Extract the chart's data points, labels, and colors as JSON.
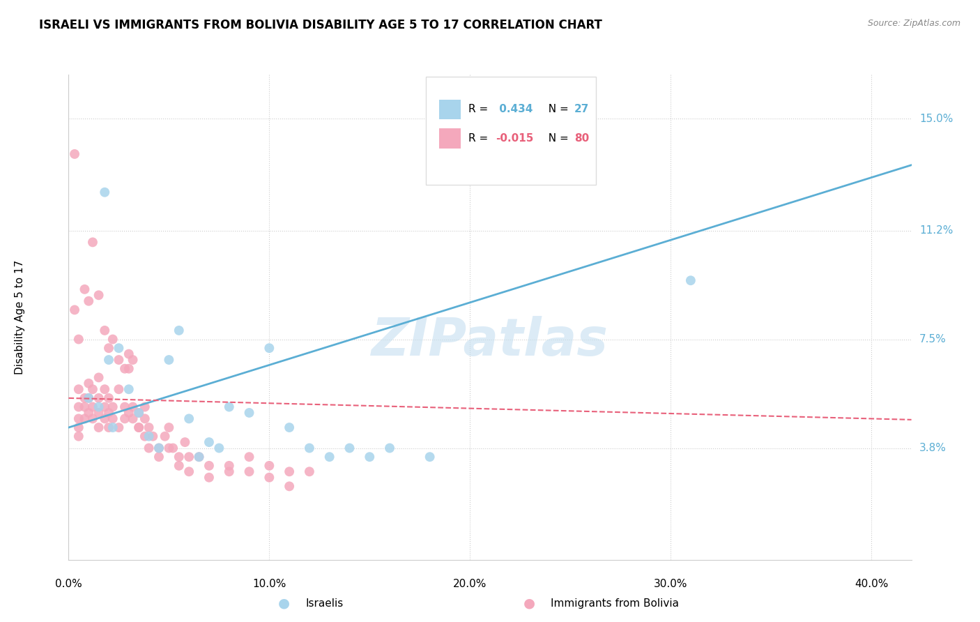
{
  "title": "ISRAELI VS IMMIGRANTS FROM BOLIVIA DISABILITY AGE 5 TO 17 CORRELATION CHART",
  "source": "Source: ZipAtlas.com",
  "xlabel_ticks": [
    "0.0%",
    "10.0%",
    "20.0%",
    "30.0%",
    "40.0%"
  ],
  "xlabel_vals": [
    0.0,
    10.0,
    20.0,
    30.0,
    40.0
  ],
  "ylabel": "Disability Age 5 to 17",
  "right_ytick_labels": [
    "3.8%",
    "7.5%",
    "11.2%",
    "15.0%"
  ],
  "right_ytick_vals": [
    3.8,
    7.5,
    11.2,
    15.0
  ],
  "ylim": [
    0.0,
    16.5
  ],
  "xlim": [
    0.0,
    42.0
  ],
  "blue_R": 0.434,
  "blue_N": 27,
  "pink_R": -0.015,
  "pink_N": 80,
  "blue_color": "#a8d4ec",
  "pink_color": "#f4a8bc",
  "blue_line_color": "#5baed4",
  "pink_line_color": "#e8607a",
  "legend_label1": "Israelis",
  "legend_label2": "Immigrants from Bolivia",
  "watermark": "ZIPatlas",
  "watermark_color": "#c5dff0",
  "blue_x": [
    1.0,
    1.5,
    2.0,
    2.2,
    2.5,
    3.0,
    3.5,
    4.0,
    4.5,
    5.0,
    5.5,
    6.0,
    6.5,
    7.0,
    7.5,
    8.0,
    9.0,
    10.0,
    11.0,
    12.0,
    13.0,
    14.0,
    15.0,
    16.0,
    18.0,
    31.0,
    1.8
  ],
  "blue_y": [
    5.5,
    5.2,
    6.8,
    4.5,
    7.2,
    5.8,
    5.0,
    4.2,
    3.8,
    6.8,
    7.8,
    4.8,
    3.5,
    4.0,
    3.8,
    5.2,
    5.0,
    7.2,
    4.5,
    3.8,
    3.5,
    3.8,
    3.5,
    3.8,
    3.5,
    9.5,
    12.5
  ],
  "pink_x": [
    0.5,
    0.5,
    0.5,
    0.5,
    0.5,
    0.8,
    0.8,
    0.8,
    1.0,
    1.0,
    1.0,
    1.2,
    1.2,
    1.2,
    1.5,
    1.5,
    1.5,
    1.5,
    1.8,
    1.8,
    1.8,
    2.0,
    2.0,
    2.0,
    2.2,
    2.2,
    2.5,
    2.5,
    2.8,
    2.8,
    3.0,
    3.0,
    3.2,
    3.2,
    3.5,
    3.5,
    3.8,
    3.8,
    4.0,
    4.2,
    4.5,
    4.8,
    5.0,
    5.2,
    5.5,
    5.8,
    6.0,
    6.5,
    7.0,
    8.0,
    9.0,
    10.0,
    11.0,
    12.0,
    0.3,
    0.3,
    0.5,
    0.8,
    1.0,
    1.2,
    1.5,
    1.8,
    2.0,
    2.2,
    2.5,
    2.8,
    3.0,
    3.2,
    3.5,
    3.8,
    4.0,
    4.5,
    5.0,
    5.5,
    6.0,
    7.0,
    8.0,
    9.0,
    10.0,
    11.0
  ],
  "pink_y": [
    5.2,
    4.8,
    4.5,
    4.2,
    5.8,
    5.5,
    4.8,
    5.2,
    6.0,
    5.5,
    5.0,
    5.2,
    5.8,
    4.8,
    6.2,
    5.5,
    5.0,
    4.5,
    5.8,
    5.2,
    4.8,
    5.5,
    5.0,
    4.5,
    5.2,
    4.8,
    5.8,
    4.5,
    5.2,
    4.8,
    5.0,
    6.5,
    4.8,
    5.2,
    5.0,
    4.5,
    4.8,
    5.2,
    4.5,
    4.2,
    3.8,
    4.2,
    4.5,
    3.8,
    3.5,
    4.0,
    3.5,
    3.5,
    3.2,
    3.0,
    3.5,
    3.2,
    3.0,
    3.0,
    13.8,
    8.5,
    7.5,
    9.2,
    8.8,
    10.8,
    9.0,
    7.8,
    7.2,
    7.5,
    6.8,
    6.5,
    7.0,
    6.8,
    4.5,
    4.2,
    3.8,
    3.5,
    3.8,
    3.2,
    3.0,
    2.8,
    3.2,
    3.0,
    2.8,
    2.5
  ]
}
